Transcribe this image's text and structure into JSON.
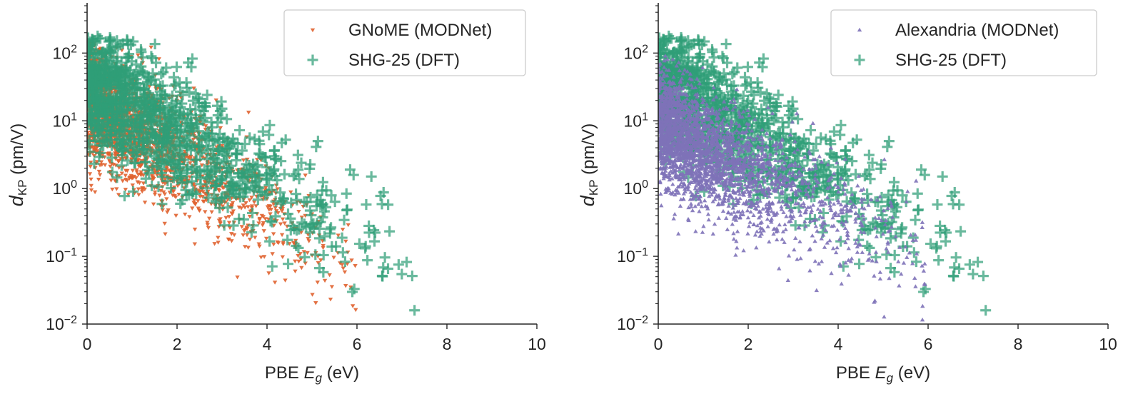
{
  "colors": {
    "gnome": "#e0622f",
    "alexandria": "#7e72b8",
    "shg": "#2f9e77",
    "axis": "#262626",
    "legend_border": "#cccccc"
  },
  "chart_data": [
    {
      "type": "scatter",
      "xlabel_prefix": "PBE ",
      "xlabel_symbol": "E",
      "xlabel_sub": "g",
      "xlabel_suffix": " (eV)",
      "ylabel_symbol": "d",
      "ylabel_sub": "KP",
      "ylabel_suffix": " (pm/V)",
      "xlim": [
        0,
        10
      ],
      "ylim": [
        0.01,
        500
      ],
      "yscale": "log",
      "xticks": [
        {
          "value": 0,
          "label": "0"
        },
        {
          "value": 2,
          "label": "2"
        },
        {
          "value": 4,
          "label": "4"
        },
        {
          "value": 6,
          "label": "6"
        },
        {
          "value": 8,
          "label": "8"
        },
        {
          "value": 10,
          "label": "10"
        }
      ],
      "yticks": [
        {
          "value": 0.01,
          "base": "10",
          "exp": "−2"
        },
        {
          "value": 0.1,
          "base": "10",
          "exp": "−1"
        },
        {
          "value": 1,
          "base": "10",
          "exp": "0"
        },
        {
          "value": 10,
          "base": "10",
          "exp": "1"
        },
        {
          "value": 100,
          "base": "10",
          "exp": "2"
        }
      ],
      "grid": false,
      "legend_position": "top-right",
      "series": [
        {
          "name": "GNoME (MODNet)",
          "marker": "triangle-down",
          "color_key": "gnome",
          "distribution": {
            "seed": 11,
            "count": 2200,
            "x_max": 9.0,
            "log_y_at_zero": 1.3,
            "log_y_slope": -0.41,
            "log_y_spread": 0.42,
            "log_y_cap": 2.18,
            "x_density": "decreasing"
          }
        },
        {
          "name": "SHG-25 (DFT)",
          "marker": "plus",
          "color_key": "shg",
          "distribution": {
            "seed": 29,
            "count": 1100,
            "x_max": 9.2,
            "log_y_at_zero": 1.55,
            "log_y_slope": -0.37,
            "log_y_spread": 0.45,
            "log_y_cap": 2.28,
            "x_density": "broad"
          }
        }
      ]
    },
    {
      "type": "scatter",
      "xlabel_prefix": "PBE ",
      "xlabel_symbol": "E",
      "xlabel_sub": "g",
      "xlabel_suffix": " (eV)",
      "ylabel_symbol": "d",
      "ylabel_sub": "KP",
      "ylabel_suffix": " (pm/V)",
      "xlim": [
        0,
        10
      ],
      "ylim": [
        0.01,
        500
      ],
      "yscale": "log",
      "xticks": [
        {
          "value": 0,
          "label": "0"
        },
        {
          "value": 2,
          "label": "2"
        },
        {
          "value": 4,
          "label": "4"
        },
        {
          "value": 6,
          "label": "6"
        },
        {
          "value": 8,
          "label": "8"
        },
        {
          "value": 10,
          "label": "10"
        }
      ],
      "yticks": [
        {
          "value": 0.01,
          "base": "10",
          "exp": "−2"
        },
        {
          "value": 0.1,
          "base": "10",
          "exp": "−1"
        },
        {
          "value": 1,
          "base": "10",
          "exp": "0"
        },
        {
          "value": 10,
          "base": "10",
          "exp": "1"
        },
        {
          "value": 100,
          "base": "10",
          "exp": "2"
        }
      ],
      "grid": false,
      "legend_position": "top-right",
      "series": [
        {
          "name": "SHG-25 (DFT)",
          "marker": "plus",
          "color_key": "shg",
          "draw_first": true,
          "distribution": {
            "seed": 29,
            "count": 1100,
            "x_max": 9.2,
            "log_y_at_zero": 1.55,
            "log_y_slope": -0.37,
            "log_y_spread": 0.45,
            "log_y_cap": 2.28,
            "x_density": "broad"
          }
        },
        {
          "name": "Alexandria (MODNet)",
          "marker": "triangle-up",
          "color_key": "alexandria",
          "distribution": {
            "seed": 47,
            "count": 2600,
            "x_max": 7.6,
            "log_y_at_zero": 0.9,
            "log_y_slope": -0.33,
            "log_y_spread": 0.42,
            "log_y_cap": 2.2,
            "x_density": "decreasing"
          }
        }
      ],
      "legend_order": [
        "Alexandria (MODNet)",
        "SHG-25 (DFT)"
      ]
    }
  ]
}
